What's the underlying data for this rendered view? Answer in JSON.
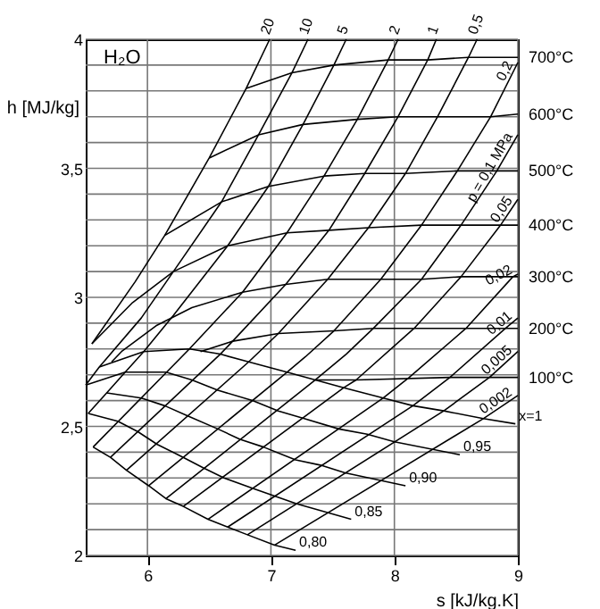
{
  "chart_data": {
    "type": "line",
    "title": "H₂O",
    "xlabel": "s [kJ/kg.K]",
    "ylabel": "h [MJ/kg]",
    "xlim": [
      5.5,
      9
    ],
    "xticks": [
      6,
      7,
      8,
      9
    ],
    "ylim": [
      2,
      4
    ],
    "yticks": [
      2,
      {
        "value": 2.1,
        "label": null
      },
      {
        "value": 2.2,
        "label": null
      },
      {
        "value": 2.3,
        "label": null
      },
      {
        "value": 2.4,
        "label": null
      },
      {
        "value": 2.5,
        "label": "2,5"
      },
      {
        "value": 2.6,
        "label": null
      },
      {
        "value": 2.7,
        "label": null
      },
      {
        "value": 2.8,
        "label": null
      },
      {
        "value": 2.9,
        "label": null
      },
      3,
      {
        "value": 3.1,
        "label": null
      },
      {
        "value": 3.2,
        "label": null
      },
      {
        "value": 3.3,
        "label": null
      },
      {
        "value": 3.4,
        "label": null
      },
      {
        "value": 3.5,
        "label": "3,5"
      },
      {
        "value": 3.6,
        "label": null
      },
      {
        "value": 3.7,
        "label": null
      },
      {
        "value": 3.8,
        "label": null
      },
      {
        "value": 3.9,
        "label": null
      },
      4
    ],
    "grid": true,
    "legend": false,
    "marker": "none",
    "line_style": "solid",
    "series": [
      {
        "name": "700°C",
        "color": "#000000",
        "x": [
          6.8,
          7.17,
          7.51,
          7.95,
          8.27,
          8.6,
          9
        ],
        "values": [
          3.81,
          3.87,
          3.9,
          3.92,
          3.92,
          3.93,
          3.93
        ]
      },
      {
        "name": "600°C",
        "color": "#000000",
        "x": [
          6.5,
          6.9,
          7.26,
          7.7,
          8.03,
          8.35,
          8.78,
          9
        ],
        "values": [
          3.54,
          3.63,
          3.67,
          3.69,
          3.7,
          3.7,
          3.7,
          3.71
        ]
      },
      {
        "name": "500°C",
        "color": "#000000",
        "x": [
          6.14,
          6.6,
          6.98,
          7.43,
          7.76,
          8.09,
          8.51,
          8.83,
          9
        ],
        "values": [
          3.24,
          3.37,
          3.43,
          3.47,
          3.48,
          3.48,
          3.49,
          3.49,
          3.49
        ]
      },
      {
        "name": "400°C",
        "color": "#000000",
        "x": [
          5.55,
          5.88,
          6.21,
          6.65,
          7.13,
          7.47,
          7.79,
          8.22,
          8.54,
          9
        ],
        "values": [
          2.82,
          2.98,
          3.1,
          3.2,
          3.25,
          3.26,
          3.27,
          3.28,
          3.28,
          3.28
        ]
      },
      {
        "name": "300°C",
        "color": "#000000",
        "x": [
          5.71,
          5.79,
          6.07,
          6.36,
          6.77,
          7.12,
          7.46,
          7.89,
          8.22,
          8.54,
          9
        ],
        "values": [
          2.75,
          2.79,
          2.89,
          2.96,
          3.02,
          3.05,
          3.07,
          3.07,
          3.07,
          3.08,
          3.08
        ]
      },
      {
        "name": "200°C",
        "color": "#000000",
        "x": [
          6.43,
          6.69,
          7.06,
          7.51,
          7.83,
          8.16,
          8.58,
          9
        ],
        "values": [
          2.79,
          2.83,
          2.86,
          2.87,
          2.88,
          2.88,
          2.88,
          2.88
        ]
      },
      {
        "name": "100°C",
        "color": "#000000",
        "x": [
          7.36,
          7.69,
          8.45,
          9
        ],
        "values": [
          2.68,
          2.68,
          2.69,
          2.69
        ]
      },
      {
        "name": "x=1",
        "color": "#000000",
        "x": [
          5.61,
          5.97,
          6.34,
          6.59,
          6.82,
          7.13,
          7.36,
          7.59,
          7.91,
          8.15,
          8.4,
          8.72,
          8.98
        ],
        "values": [
          2.73,
          2.79,
          2.8,
          2.78,
          2.75,
          2.71,
          2.68,
          2.65,
          2.61,
          2.58,
          2.56,
          2.53,
          2.51
        ]
      },
      {
        "name": "0,95",
        "color": "#000000",
        "x": [
          5.5,
          5.82,
          6.15,
          6.36,
          6.57,
          6.85,
          7.06,
          7.27,
          7.55,
          7.78,
          8.0,
          8.53
        ],
        "values": [
          2.66,
          2.71,
          2.71,
          2.68,
          2.64,
          2.6,
          2.56,
          2.53,
          2.49,
          2.47,
          2.44,
          2.39
        ]
      },
      {
        "name": "0,90",
        "color": "#000000",
        "x": [
          5.67,
          5.95,
          6.14,
          6.33,
          6.57,
          6.75,
          6.94,
          7.2,
          7.4,
          7.6,
          8.09
        ],
        "values": [
          2.63,
          2.61,
          2.58,
          2.54,
          2.49,
          2.45,
          2.42,
          2.37,
          2.35,
          2.32,
          2.27
        ]
      },
      {
        "name": "0,85",
        "color": "#000000",
        "x": [
          5.52,
          5.76,
          5.92,
          6.08,
          6.29,
          6.45,
          6.62,
          6.85,
          7.03,
          7.21,
          7.65
        ],
        "values": [
          2.55,
          2.52,
          2.48,
          2.43,
          2.38,
          2.34,
          2.3,
          2.26,
          2.23,
          2.2,
          2.14
        ]
      },
      {
        "name": "0,80",
        "color": "#000000",
        "x": [
          5.56,
          5.7,
          5.83,
          6.01,
          6.15,
          6.29,
          6.49,
          6.65,
          6.81,
          7.03,
          7.2
        ],
        "values": [
          2.42,
          2.38,
          2.33,
          2.27,
          2.22,
          2.19,
          2.14,
          2.11,
          2.08,
          2.04,
          2.02
        ]
      },
      {
        "name": "20",
        "color": "#000000",
        "x": [
          5.55,
          5.9,
          6.14,
          6.5,
          6.8,
          6.99
        ],
        "values": [
          2.82,
          3.06,
          3.24,
          3.54,
          3.81,
          4
        ]
      },
      {
        "name": "10",
        "color": "#000000",
        "x": [
          5.5,
          5.61,
          5.95,
          6.21,
          6.6,
          6.9,
          7.17,
          7.3
        ],
        "values": [
          2.66,
          2.73,
          2.92,
          3.1,
          3.37,
          3.63,
          3.87,
          4
        ]
      },
      {
        "name": "5",
        "color": "#000000",
        "x": [
          5.52,
          5.67,
          5.82,
          5.97,
          6.21,
          6.65,
          6.98,
          7.26,
          7.51,
          7.61
        ],
        "values": [
          2.55,
          2.63,
          2.71,
          2.79,
          2.93,
          3.2,
          3.43,
          3.67,
          3.9,
          4
        ]
      },
      {
        "name": "2",
        "color": "#000000",
        "x": [
          5.56,
          6.34,
          6.77,
          7.13,
          7.43,
          7.7,
          7.95,
          8.03
        ],
        "values": [
          2.42,
          2.8,
          3.02,
          3.25,
          3.47,
          3.69,
          3.92,
          4
        ]
      },
      {
        "name": "1",
        "color": "#000000",
        "x": [
          5.7,
          6.59,
          6.69,
          7.12,
          7.47,
          7.76,
          8.03,
          8.27,
          8.34
        ],
        "values": [
          2.38,
          2.78,
          2.83,
          3.05,
          3.26,
          3.48,
          3.7,
          3.92,
          4
        ]
      },
      {
        "name": "0,5",
        "color": "#000000",
        "x": [
          5.83,
          6.82,
          7.06,
          7.46,
          7.79,
          8.09,
          8.35,
          8.6,
          8.67
        ],
        "values": [
          2.33,
          2.75,
          2.86,
          3.07,
          3.27,
          3.48,
          3.7,
          3.93,
          4
        ]
      },
      {
        "name": "0,2",
        "color": "#000000",
        "x": [
          6.01,
          7.13,
          7.28,
          7.51,
          7.89,
          8.22,
          8.51,
          8.78,
          9
        ],
        "values": [
          2.27,
          2.71,
          2.77,
          2.87,
          3.07,
          3.28,
          3.49,
          3.7,
          3.91
        ]
      },
      {
        "name": "p = 0,1 MPa",
        "color": "#000000",
        "x": [
          6.15,
          7.36,
          7.61,
          7.83,
          8.22,
          8.54,
          8.83,
          9
        ],
        "values": [
          2.22,
          2.68,
          2.78,
          2.88,
          3.07,
          3.28,
          3.49,
          3.63
        ]
      },
      {
        "name": "0,05",
        "color": "#000000",
        "x": [
          6.29,
          7.59,
          7.69,
          8.16,
          8.54,
          8.86,
          9
        ],
        "values": [
          2.19,
          2.65,
          2.68,
          2.88,
          3.08,
          3.28,
          3.38
        ]
      },
      {
        "name": "0,02",
        "color": "#000000",
        "x": [
          6.49,
          7.91,
          8.12,
          8.58,
          8.96,
          9
        ],
        "values": [
          2.14,
          2.61,
          2.69,
          2.88,
          3.08,
          3.09
        ]
      },
      {
        "name": "0,01",
        "color": "#000000",
        "x": [
          6.65,
          8.15,
          8.45,
          8.9,
          9
        ],
        "values": [
          2.11,
          2.58,
          2.69,
          2.88,
          2.92
        ]
      },
      {
        "name": "0,005",
        "color": "#000000",
        "x": [
          6.81,
          8.4,
          8.77,
          9
        ],
        "values": [
          2.08,
          2.56,
          2.69,
          2.79
        ]
      },
      {
        "name": "0,002",
        "color": "#000000",
        "x": [
          7.03,
          8.72,
          9
        ],
        "values": [
          2.04,
          2.53,
          2.62
        ]
      }
    ]
  }
}
